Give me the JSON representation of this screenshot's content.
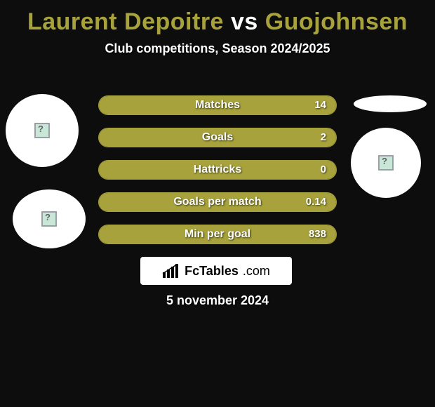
{
  "title": {
    "player1": "Laurent Depoitre",
    "vs": "vs",
    "player2": "Guojohnsen"
  },
  "subtitle": "Club competitions, Season 2024/2025",
  "colors": {
    "accent": "#a7a23b",
    "accent_border": "#a7a23b",
    "bar_fill": "#a7a23b",
    "background": "#0d0d0d",
    "text": "#ffffff"
  },
  "stats": [
    {
      "label": "Matches",
      "value": "14",
      "fill_pct": 100
    },
    {
      "label": "Goals",
      "value": "2",
      "fill_pct": 100
    },
    {
      "label": "Hattricks",
      "value": "0",
      "fill_pct": 100
    },
    {
      "label": "Goals per match",
      "value": "0.14",
      "fill_pct": 100
    },
    {
      "label": "Min per goal",
      "value": "838",
      "fill_pct": 100
    }
  ],
  "branding": {
    "name": "FcTables",
    "suffix": ".com"
  },
  "date": "5 november 2024"
}
